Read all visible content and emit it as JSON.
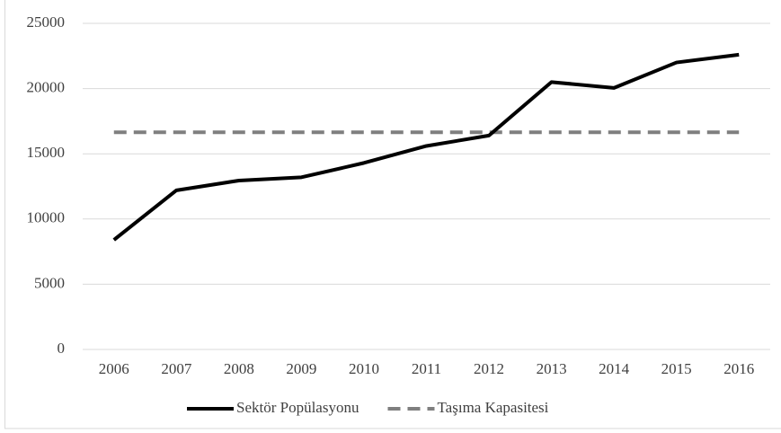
{
  "chart_data": {
    "type": "line",
    "categories": [
      "2006",
      "2007",
      "2008",
      "2009",
      "2010",
      "2011",
      "2012",
      "2013",
      "2014",
      "2015",
      "2016"
    ],
    "series": [
      {
        "name": "Sektör Popülasyonu",
        "color": "#000000",
        "dash": false,
        "values": [
          8400,
          12200,
          12950,
          13200,
          14300,
          15600,
          16400,
          20500,
          20050,
          22000,
          22600
        ]
      },
      {
        "name": "Taşıma Kapasitesi",
        "color": "#7f7f7f",
        "dash": true,
        "values": [
          16650,
          16650,
          16650,
          16650,
          16650,
          16650,
          16650,
          16650,
          16650,
          16650,
          16650
        ]
      }
    ],
    "ylim": [
      0,
      25000
    ],
    "yticks": [
      0,
      5000,
      10000,
      15000,
      20000,
      25000
    ],
    "grid": true,
    "legend": "bottom"
  }
}
